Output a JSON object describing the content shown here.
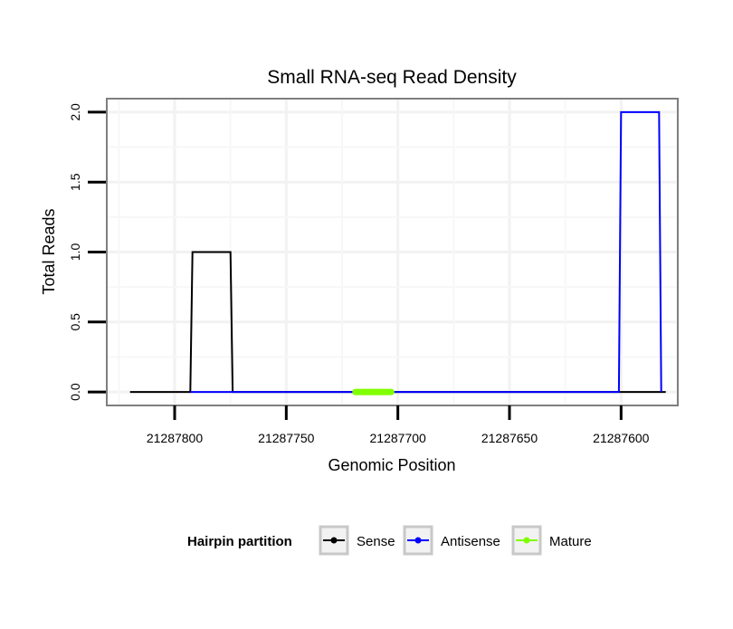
{
  "chart_data": {
    "type": "line",
    "title": "Small RNA-seq Read Density",
    "xlabel": "Genomic Position",
    "ylabel": "Total Reads",
    "x_reversed": true,
    "xlim": [
      21287830,
      21287575
    ],
    "ylim": [
      -0.09,
      2.09
    ],
    "xticks": [
      21287800,
      21287750,
      21287700,
      21287650,
      21287600
    ],
    "xtick_labels": [
      "21287800",
      "21287750",
      "21287700",
      "21287650",
      "21287600"
    ],
    "yticks": [
      0.0,
      0.5,
      1.0,
      1.5,
      2.0
    ],
    "ytick_labels": [
      "0.0",
      "0.5",
      "1.0",
      "1.5",
      "2.0"
    ],
    "grid": true,
    "legend_position": "bottom",
    "legend_title": "Hairpin partition",
    "series": [
      {
        "name": "Sense",
        "color": "#000000",
        "x": [
          21287820,
          21287793,
          21287792,
          21287775,
          21287774,
          21287580
        ],
        "y": [
          0,
          0,
          1,
          1,
          0,
          0
        ]
      },
      {
        "name": "Antisense",
        "color": "#0000ff",
        "x": [
          21287793,
          21287774,
          21287620,
          21287601,
          21287600,
          21287583,
          21287582
        ],
        "y": [
          0,
          0,
          0,
          0,
          2,
          2,
          0
        ]
      },
      {
        "name": "Mature",
        "color": "#7fff00",
        "x": [
          21287719,
          21287703
        ],
        "y": [
          0,
          0
        ]
      }
    ]
  }
}
